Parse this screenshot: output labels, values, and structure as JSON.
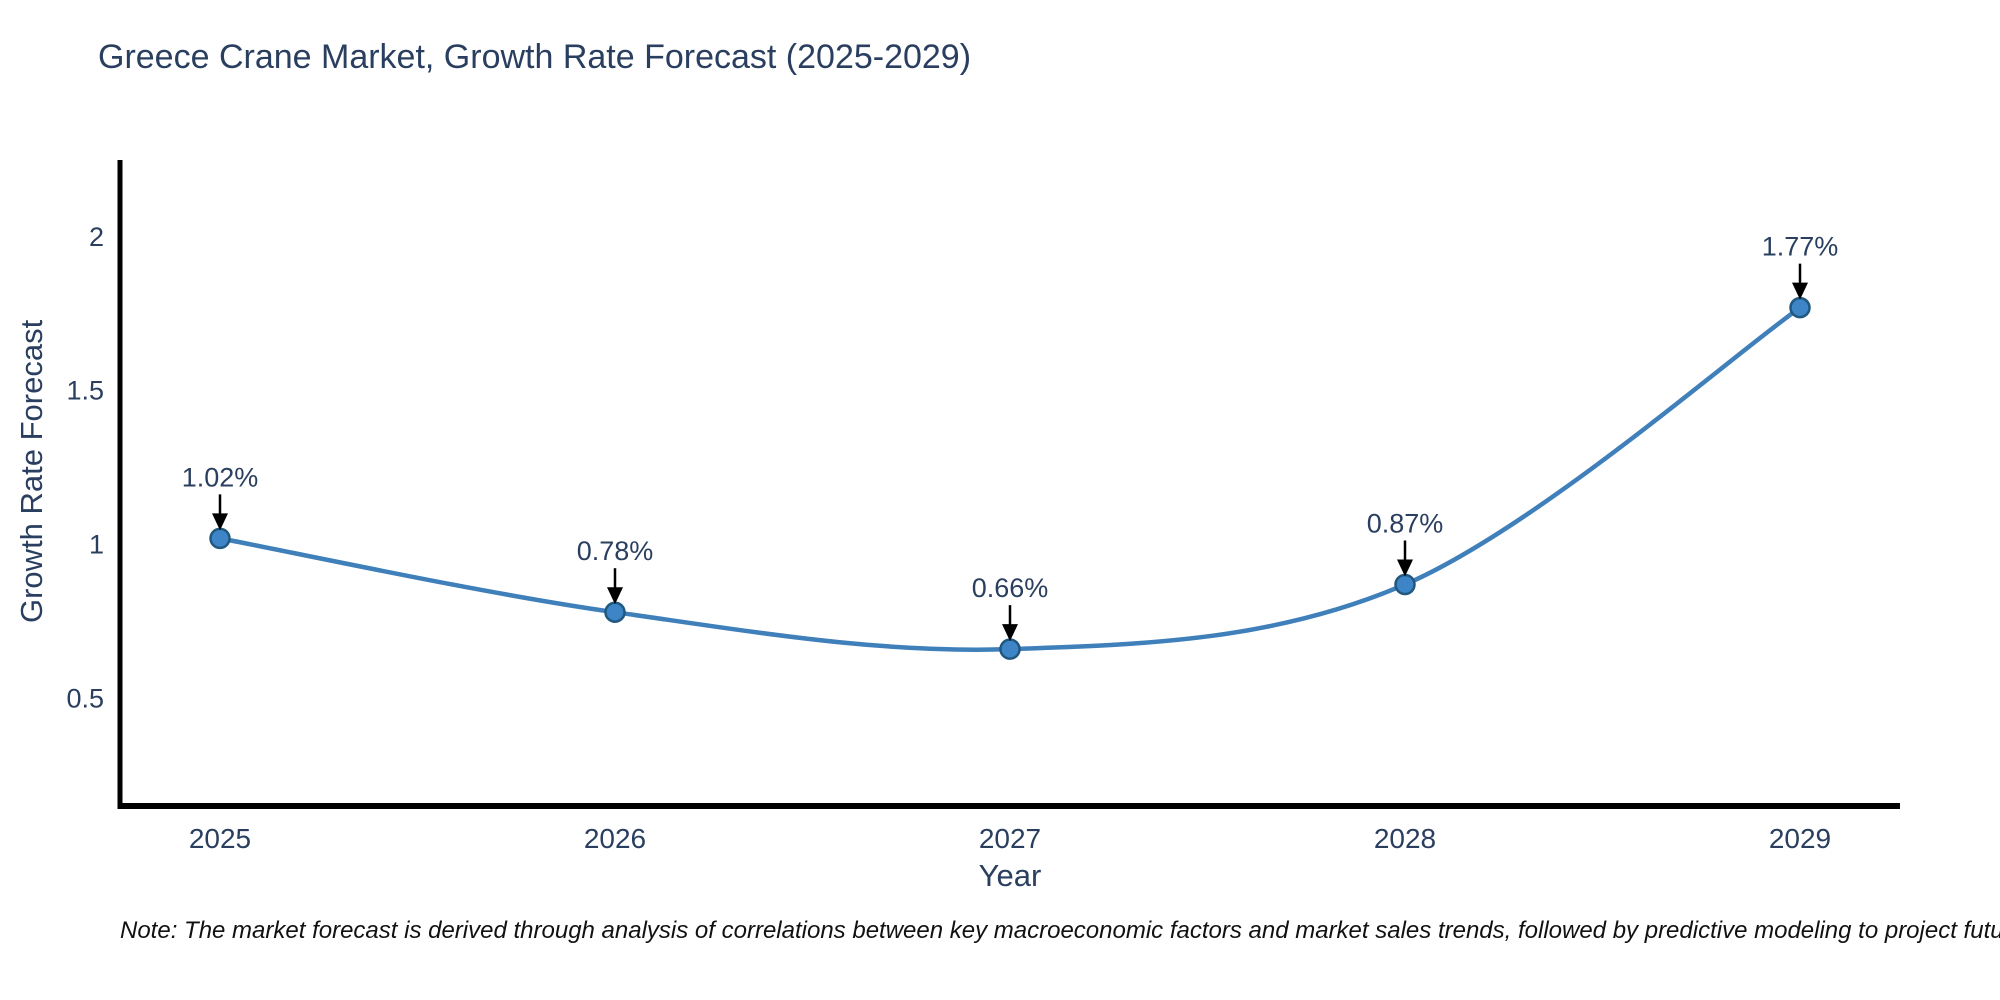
{
  "header": {
    "title": "Greece Crane Market, Growth Rate Forecast (2025-2029)"
  },
  "chart_data": {
    "type": "line",
    "title": "Greece Crane Market, Growth Rate Forecast (2025-2029)",
    "xlabel": "Year",
    "ylabel": "Growth Rate Forecast",
    "categories": [
      "2025",
      "2026",
      "2027",
      "2028",
      "2029"
    ],
    "values": [
      1.02,
      0.78,
      0.66,
      0.87,
      1.77
    ],
    "point_labels": [
      "1.02%",
      "0.78%",
      "0.66%",
      "0.87%",
      "1.77%"
    ],
    "yticks": [
      0.5,
      1,
      1.5,
      2
    ],
    "ytick_labels": [
      "0.5",
      "1",
      "1.5",
      "2"
    ],
    "ylim": [
      0.15,
      2.25
    ],
    "grid": false,
    "legend": "none",
    "marker_style": "circle-with-down-arrow-annotation",
    "colors": {
      "line": "#3f7fba",
      "marker_fill": "#3d85c6",
      "marker_edge": "#20587f",
      "axis": "#000000",
      "tick_text": "#2a3f5f",
      "annotation_text": "#2a3f5f",
      "arrow": "#000000"
    }
  },
  "footer": {
    "note": "Note: The market forecast is derived through analysis of correlations between key macroeconomic factors and market sales trends, followed by predictive modeling to project future sales"
  }
}
